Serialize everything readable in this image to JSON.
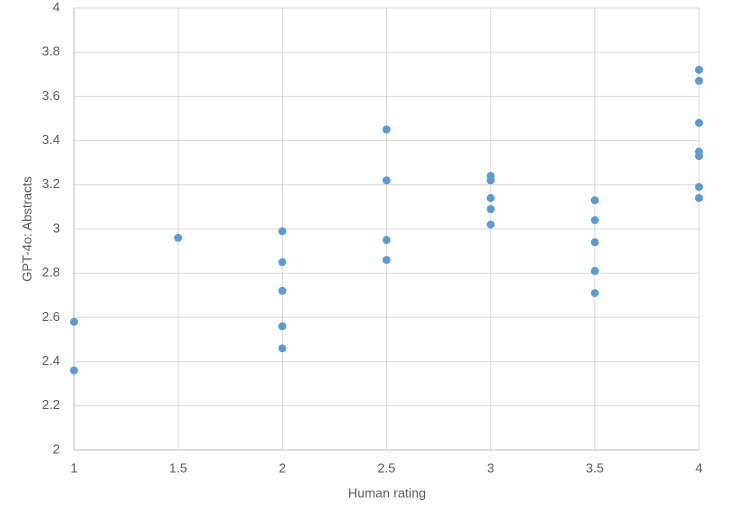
{
  "chart_data": {
    "type": "scatter",
    "xlabel": "Human rating",
    "ylabel": "GPT-4o: Abstracts",
    "x": [
      1,
      1,
      1.5,
      2,
      2,
      2,
      2,
      2,
      2.5,
      2.5,
      2.5,
      2.5,
      3,
      3,
      3,
      3,
      3,
      3.5,
      3.5,
      3.5,
      3.5,
      3.5,
      4,
      4,
      4,
      4,
      4,
      4,
      4
    ],
    "values": [
      2.58,
      2.36,
      2.96,
      2.99,
      2.85,
      2.72,
      2.56,
      2.46,
      3.45,
      3.22,
      2.95,
      2.86,
      3.24,
      3.22,
      3.14,
      3.09,
      3.02,
      3.13,
      3.04,
      2.94,
      2.81,
      2.71,
      3.72,
      3.67,
      3.48,
      3.35,
      3.33,
      3.19,
      3.14
    ],
    "color": "#5b9bd5",
    "xlim": [
      1,
      4
    ],
    "xticks": [
      1,
      1.5,
      2,
      2.5,
      3,
      3.5,
      4
    ],
    "ylim": [
      2,
      4
    ],
    "yticks": [
      2,
      2.2,
      2.4,
      2.6,
      2.8,
      3,
      3.2,
      3.4,
      3.6,
      3.8,
      4
    ],
    "grid": true
  }
}
